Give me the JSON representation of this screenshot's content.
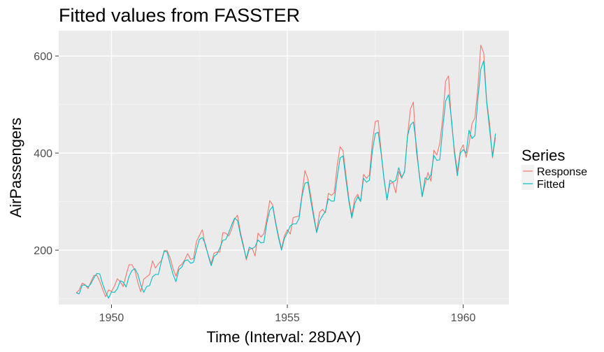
{
  "chart_data": {
    "type": "line",
    "title": "Fitted values from FASSTER",
    "xlabel": "Time (Interval: 28DAY)",
    "ylabel": "AirPassengers",
    "xlim": [
      1948.5,
      1961.3
    ],
    "ylim": [
      88,
      652
    ],
    "xticks": [
      1950,
      1955,
      1960
    ],
    "yticks": [
      200,
      400,
      600
    ],
    "grid": true,
    "legend": {
      "title": "Series",
      "placement": "right"
    },
    "x_start": 1949.0,
    "x_step": 0.0833333,
    "series": [
      {
        "name": "Response",
        "color": "#f8766d",
        "values": [
          112,
          118,
          132,
          129,
          121,
          135,
          148,
          148,
          136,
          119,
          104,
          118,
          115,
          126,
          141,
          135,
          125,
          149,
          170,
          170,
          158,
          133,
          114,
          140,
          145,
          150,
          178,
          163,
          172,
          178,
          199,
          199,
          184,
          162,
          146,
          166,
          171,
          180,
          193,
          181,
          183,
          218,
          230,
          242,
          209,
          191,
          172,
          194,
          196,
          196,
          236,
          235,
          229,
          243,
          264,
          272,
          237,
          211,
          180,
          201,
          204,
          188,
          235,
          227,
          234,
          264,
          302,
          293,
          259,
          229,
          203,
          229,
          242,
          233,
          267,
          269,
          270,
          315,
          364,
          347,
          312,
          274,
          237,
          278,
          284,
          277,
          317,
          313,
          318,
          374,
          413,
          405,
          355,
          306,
          271,
          306,
          315,
          301,
          356,
          348,
          355,
          422,
          465,
          467,
          404,
          347,
          305,
          336,
          340,
          318,
          362,
          348,
          363,
          435,
          491,
          505,
          404,
          359,
          310,
          337,
          360,
          342,
          406,
          396,
          420,
          472,
          548,
          559,
          463,
          407,
          362,
          405,
          417,
          391,
          419,
          461,
          472,
          535,
          622,
          606,
          508,
          461,
          390,
          432
        ]
      },
      {
        "name": "Fitted",
        "color": "#00bfc4",
        "values": [
          112,
          110,
          128,
          128,
          124,
          131,
          143,
          152,
          151,
          130,
          114,
          101,
          114,
          113,
          120,
          137,
          134,
          124,
          146,
          158,
          162,
          150,
          128,
          113,
          125,
          127,
          145,
          150,
          150,
          176,
          198,
          196,
          172,
          150,
          135,
          160,
          165,
          178,
          180,
          173,
          175,
          201,
          222,
          226,
          213,
          189,
          168,
          187,
          192,
          205,
          220,
          222,
          236,
          252,
          266,
          261,
          232,
          207,
          183,
          206,
          203,
          207,
          221,
          215,
          216,
          256,
          282,
          290,
          255,
          225,
          200,
          224,
          236,
          250,
          254,
          254,
          265,
          311,
          338,
          340,
          302,
          267,
          236,
          260,
          271,
          280,
          306,
          301,
          301,
          350,
          390,
          394,
          345,
          300,
          266,
          296,
          310,
          300,
          348,
          340,
          344,
          404,
          440,
          443,
          399,
          345,
          303,
          344,
          340,
          344,
          370,
          350,
          361,
          435,
          458,
          464,
          417,
          355,
          310,
          349,
          345,
          355,
          395,
          385,
          386,
          450,
          507,
          520,
          470,
          400,
          353,
          400,
          407,
          400,
          447,
          430,
          436,
          511,
          573,
          590,
          505,
          449,
          393,
          440
        ]
      }
    ]
  }
}
